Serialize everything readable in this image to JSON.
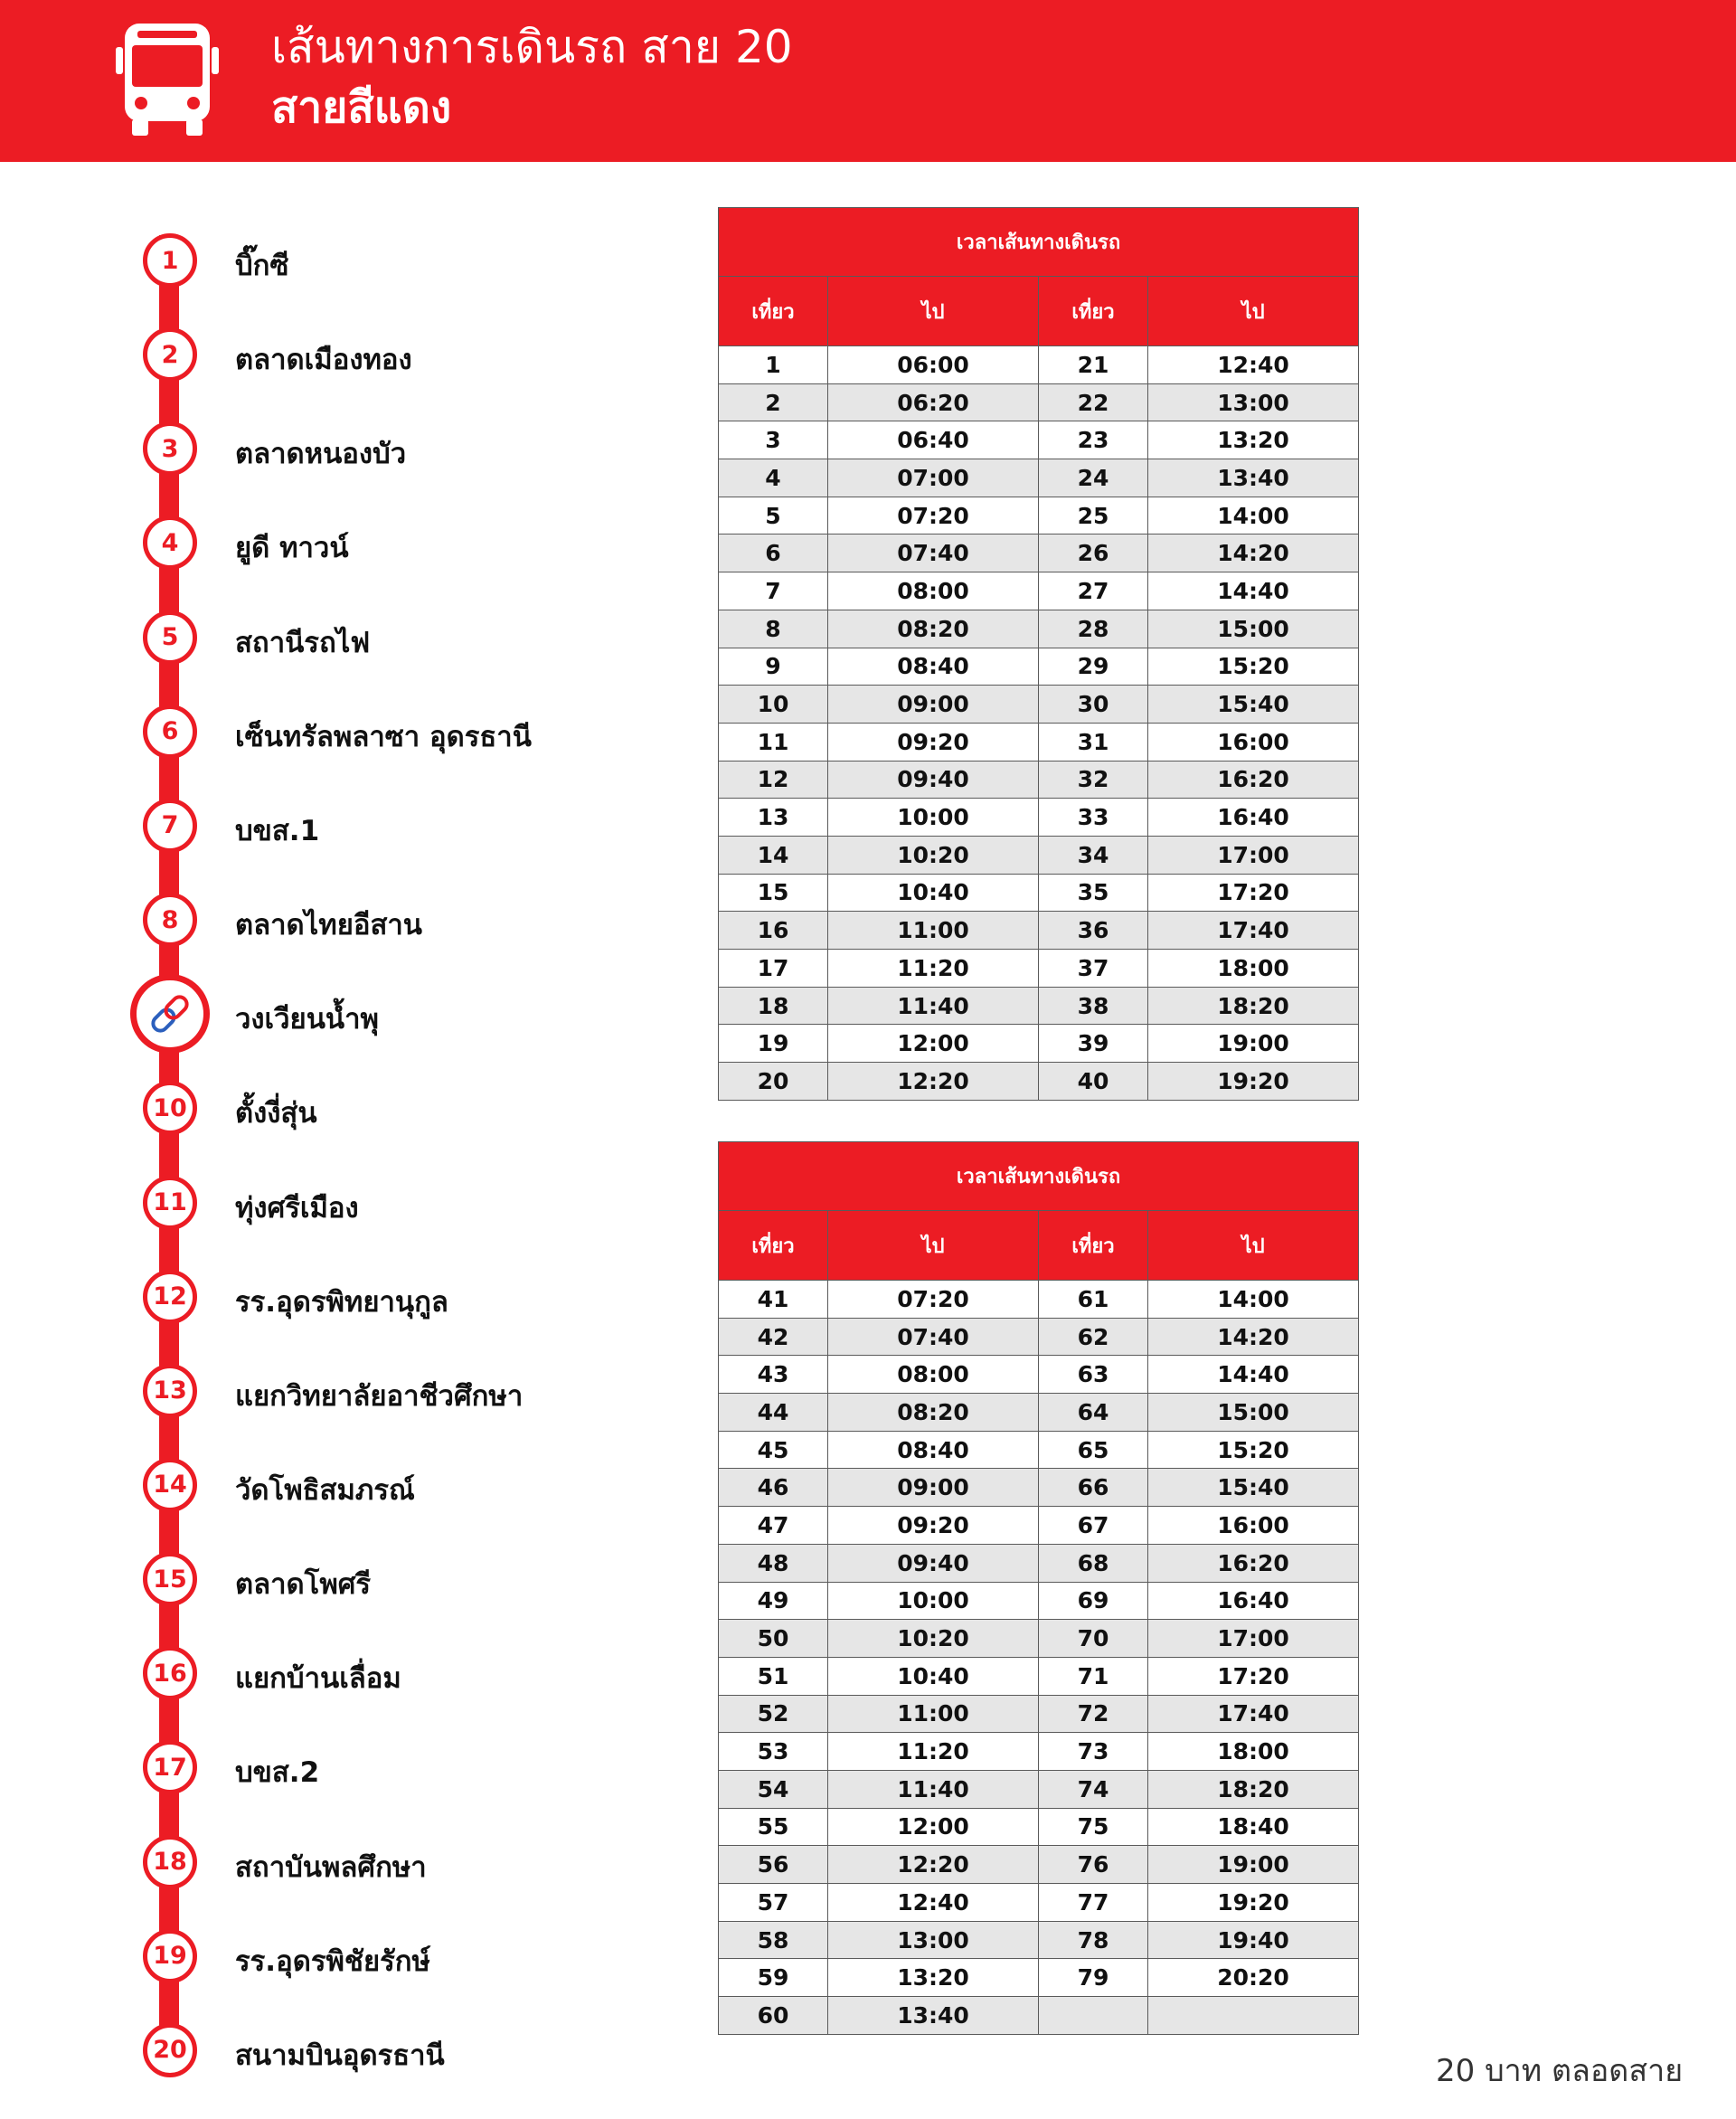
{
  "header": {
    "title": "เส้นทางการเดินรถ สาย 20",
    "subtitle": "สายสีแดง",
    "icon": "bus-icon"
  },
  "colors": {
    "accent": "#ec1c24",
    "row_alt": "#e6e6e6"
  },
  "stops": [
    {
      "num": "1",
      "name": "บิ๊กซี"
    },
    {
      "num": "2",
      "name": "ตลาดเมืองทอง"
    },
    {
      "num": "3",
      "name": "ตลาดหนองบัว"
    },
    {
      "num": "4",
      "name": "ยูดี ทาวน์"
    },
    {
      "num": "5",
      "name": "สถานีรถไฟ"
    },
    {
      "num": "6",
      "name": "เซ็นทรัลพลาซา อุดรธานี"
    },
    {
      "num": "7",
      "name": "บขส.1"
    },
    {
      "num": "8",
      "name": "ตลาดไทยอีสาน"
    },
    {
      "num": "",
      "name": "วงเวียนน้ำพุ",
      "icon": "link-icon"
    },
    {
      "num": "10",
      "name": "ตั้งงี่สุ่น"
    },
    {
      "num": "11",
      "name": "ทุ่งศรีเมือง"
    },
    {
      "num": "12",
      "name": "รร.อุดรพิทยานุกูล"
    },
    {
      "num": "13",
      "name": "แยกวิทยาลัยอาชีวศึกษา"
    },
    {
      "num": "14",
      "name": "วัดโพธิสมภรณ์"
    },
    {
      "num": "15",
      "name": "ตลาดโพศรี"
    },
    {
      "num": "16",
      "name": "แยกบ้านเลื่อม"
    },
    {
      "num": "17",
      "name": "บขส.2"
    },
    {
      "num": "18",
      "name": "สถาบันพลศึกษา"
    },
    {
      "num": "19",
      "name": "รร.อุดรพิชัยรักษ์"
    },
    {
      "num": "20",
      "name": "สนามบินอุดรธานี"
    }
  ],
  "timetables": [
    {
      "caption": "เวลาเส้นทางเดินรถ",
      "headers": [
        "เที่ยว",
        "ไป",
        "เที่ยว",
        "ไป"
      ],
      "rows": [
        [
          "1",
          "06:00",
          "21",
          "12:40"
        ],
        [
          "2",
          "06:20",
          "22",
          "13:00"
        ],
        [
          "3",
          "06:40",
          "23",
          "13:20"
        ],
        [
          "4",
          "07:00",
          "24",
          "13:40"
        ],
        [
          "5",
          "07:20",
          "25",
          "14:00"
        ],
        [
          "6",
          "07:40",
          "26",
          "14:20"
        ],
        [
          "7",
          "08:00",
          "27",
          "14:40"
        ],
        [
          "8",
          "08:20",
          "28",
          "15:00"
        ],
        [
          "9",
          "08:40",
          "29",
          "15:20"
        ],
        [
          "10",
          "09:00",
          "30",
          "15:40"
        ],
        [
          "11",
          "09:20",
          "31",
          "16:00"
        ],
        [
          "12",
          "09:40",
          "32",
          "16:20"
        ],
        [
          "13",
          "10:00",
          "33",
          "16:40"
        ],
        [
          "14",
          "10:20",
          "34",
          "17:00"
        ],
        [
          "15",
          "10:40",
          "35",
          "17:20"
        ],
        [
          "16",
          "11:00",
          "36",
          "17:40"
        ],
        [
          "17",
          "11:20",
          "37",
          "18:00"
        ],
        [
          "18",
          "11:40",
          "38",
          "18:20"
        ],
        [
          "19",
          "12:00",
          "39",
          "19:00"
        ],
        [
          "20",
          "12:20",
          "40",
          "19:20"
        ]
      ]
    },
    {
      "caption": "เวลาเส้นทางเดินรถ",
      "headers": [
        "เที่ยว",
        "ไป",
        "เที่ยว",
        "ไป"
      ],
      "rows": [
        [
          "41",
          "07:20",
          "61",
          "14:00"
        ],
        [
          "42",
          "07:40",
          "62",
          "14:20"
        ],
        [
          "43",
          "08:00",
          "63",
          "14:40"
        ],
        [
          "44",
          "08:20",
          "64",
          "15:00"
        ],
        [
          "45",
          "08:40",
          "65",
          "15:20"
        ],
        [
          "46",
          "09:00",
          "66",
          "15:40"
        ],
        [
          "47",
          "09:20",
          "67",
          "16:00"
        ],
        [
          "48",
          "09:40",
          "68",
          "16:20"
        ],
        [
          "49",
          "10:00",
          "69",
          "16:40"
        ],
        [
          "50",
          "10:20",
          "70",
          "17:00"
        ],
        [
          "51",
          "10:40",
          "71",
          "17:20"
        ],
        [
          "52",
          "11:00",
          "72",
          "17:40"
        ],
        [
          "53",
          "11:20",
          "73",
          "18:00"
        ],
        [
          "54",
          "11:40",
          "74",
          "18:20"
        ],
        [
          "55",
          "12:00",
          "75",
          "18:40"
        ],
        [
          "56",
          "12:20",
          "76",
          "19:00"
        ],
        [
          "57",
          "12:40",
          "77",
          "19:20"
        ],
        [
          "58",
          "13:00",
          "78",
          "19:40"
        ],
        [
          "59",
          "13:20",
          "79",
          "20:20"
        ],
        [
          "60",
          "13:40",
          "",
          ""
        ]
      ]
    }
  ],
  "fare": "20 บาท ตลอดสาย"
}
